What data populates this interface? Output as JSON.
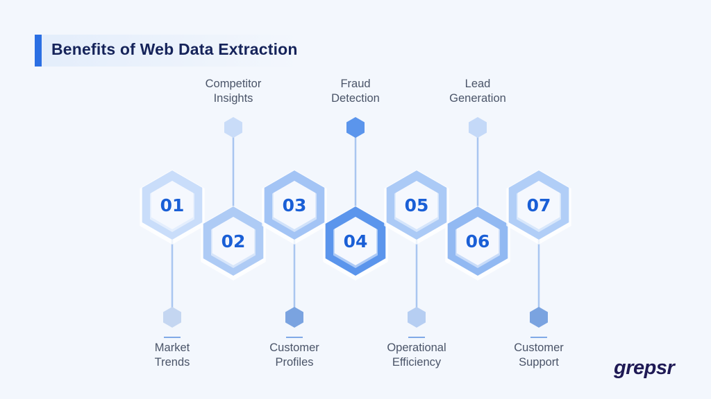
{
  "title": "Benefits of Web Data Extraction",
  "items": [
    {
      "number": "01",
      "label_line1": "Market",
      "label_line2": "Trends",
      "position": "bottom",
      "ring_color": "#c9ddfa",
      "marker_color": "#c4d6f1"
    },
    {
      "number": "02",
      "label_line1": "Competitor",
      "label_line2": "Insights",
      "position": "top",
      "ring_color": "#aecbf5",
      "marker_color": "#c9dcf8"
    },
    {
      "number": "03",
      "label_line1": "Customer",
      "label_line2": "Profiles",
      "position": "bottom",
      "ring_color": "#a3c4f5",
      "marker_color": "#7aa3e0"
    },
    {
      "number": "04",
      "label_line1": "Fraud",
      "label_line2": "Detection",
      "position": "top",
      "ring_color": "#5b95ec",
      "marker_color": "#5b95ec"
    },
    {
      "number": "05",
      "label_line1": "Operational",
      "label_line2": "Efficiency",
      "position": "bottom",
      "ring_color": "#abcaf6",
      "marker_color": "#b6cef2"
    },
    {
      "number": "06",
      "label_line1": "Lead",
      "label_line2": "Generation",
      "position": "top",
      "ring_color": "#92b9f2",
      "marker_color": "#c4d9f8"
    },
    {
      "number": "07",
      "label_line1": "Customer",
      "label_line2": "Support",
      "position": "bottom",
      "ring_color": "#b1cef7",
      "marker_color": "#7aa3e0"
    }
  ],
  "colors": {
    "number_text": "#1a5fd6",
    "title_accent": "#2b6fe3",
    "title_text": "#15235a",
    "connector": "#a9c6f0"
  },
  "brand": {
    "logo_text": "grepsr"
  }
}
